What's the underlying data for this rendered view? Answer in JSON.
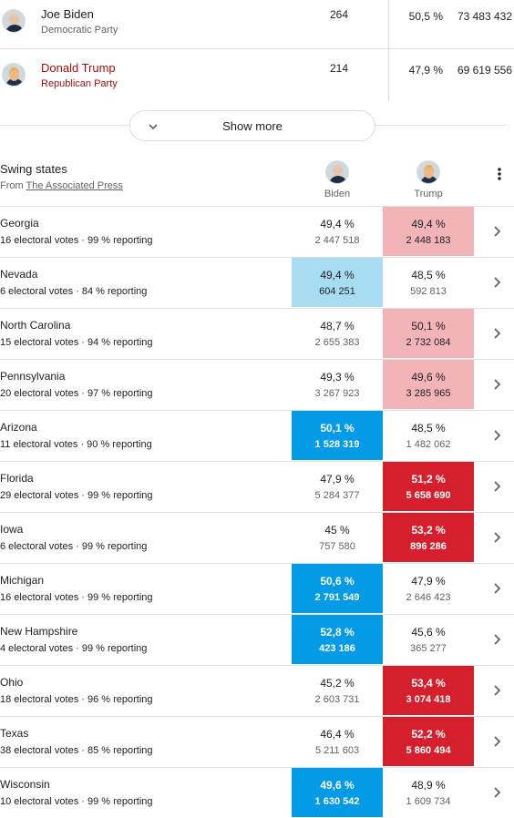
{
  "candidates": [
    {
      "name": "Joe Biden",
      "party": "Democratic Party",
      "electoral_votes": "264",
      "percent": "50,5 %",
      "votes": "73 483 432",
      "name_color": "#202124"
    },
    {
      "name": "Donald Trump",
      "party": "Republican Party",
      "electoral_votes": "214",
      "percent": "47,9 %",
      "votes": "69 619 556",
      "name_color": "#a50e0e"
    }
  ],
  "show_more": "Show more",
  "swing": {
    "title": "Swing states",
    "source_prefix": "From",
    "source": "The Associated Press",
    "columns": [
      "Biden",
      "Trump"
    ],
    "states": [
      {
        "name": "Georgia",
        "details": "16 electoral votes · 99 % reporting",
        "biden": {
          "percent": "49,4 %",
          "votes": "2 447 518"
        },
        "trump": {
          "percent": "49,4 %",
          "votes": "2 448 183",
          "fill": "#f2b4b7"
        }
      },
      {
        "name": "Nevada",
        "details": "6 electoral votes · 84 % reporting",
        "biden": {
          "percent": "49,4 %",
          "votes": "604 251",
          "fill": "#a8dcf0"
        },
        "trump": {
          "percent": "48,5 %",
          "votes": "592 813"
        }
      },
      {
        "name": "North Carolina",
        "details": "15 electoral votes · 94 % reporting",
        "biden": {
          "percent": "48,7 %",
          "votes": "2 655 383"
        },
        "trump": {
          "percent": "50,1 %",
          "votes": "2 732 084",
          "fill": "#f2b4b7"
        }
      },
      {
        "name": "Pennsylvania",
        "details": "20 electoral votes · 97 % reporting",
        "biden": {
          "percent": "49,3 %",
          "votes": "3 267 923"
        },
        "trump": {
          "percent": "49,6 %",
          "votes": "3 285 965",
          "fill": "#f2b4b7"
        }
      },
      {
        "name": "Arizona",
        "details": "11 electoral votes · 90 % reporting",
        "biden": {
          "percent": "50,1 %",
          "votes": "1 528 319",
          "fill": "#039be5"
        },
        "trump": {
          "percent": "48,5 %",
          "votes": "1 482 062"
        }
      },
      {
        "name": "Florida",
        "details": "29 electoral votes · 99 % reporting",
        "biden": {
          "percent": "47,9 %",
          "votes": "5 284 377"
        },
        "trump": {
          "percent": "51,2 %",
          "votes": "5 658 690",
          "fill": "#d61f2c"
        }
      },
      {
        "name": "Iowa",
        "details": "6 electoral votes · 99 % reporting",
        "biden": {
          "percent": "45 %",
          "votes": "757 580"
        },
        "trump": {
          "percent": "53,2 %",
          "votes": "896 286",
          "fill": "#d61f2c"
        }
      },
      {
        "name": "Michigan",
        "details": "16 electoral votes · 99 % reporting",
        "biden": {
          "percent": "50,6 %",
          "votes": "2 791 549",
          "fill": "#039be5"
        },
        "trump": {
          "percent": "47,9 %",
          "votes": "2 646 423"
        }
      },
      {
        "name": "New Hampshire",
        "details": "4 electoral votes · 99 % reporting",
        "biden": {
          "percent": "52,8 %",
          "votes": "423 186",
          "fill": "#039be5"
        },
        "trump": {
          "percent": "45,6 %",
          "votes": "365 277"
        }
      },
      {
        "name": "Ohio",
        "details": "18 electoral votes · 96 % reporting",
        "biden": {
          "percent": "45,2 %",
          "votes": "2 603 731"
        },
        "trump": {
          "percent": "53,4 %",
          "votes": "3 074 418",
          "fill": "#d61f2c"
        }
      },
      {
        "name": "Texas",
        "details": "38 electoral votes · 85 % reporting",
        "biden": {
          "percent": "46,4 %",
          "votes": "5 211 603"
        },
        "trump": {
          "percent": "52,2 %",
          "votes": "5 860 494",
          "fill": "#d61f2c"
        }
      },
      {
        "name": "Wisconsin",
        "details": "10 electoral votes · 99 % reporting",
        "biden": {
          "percent": "49,6 %",
          "votes": "1 630 542",
          "fill": "#039be5"
        },
        "trump": {
          "percent": "48,9 %",
          "votes": "1 609 734"
        }
      }
    ]
  }
}
